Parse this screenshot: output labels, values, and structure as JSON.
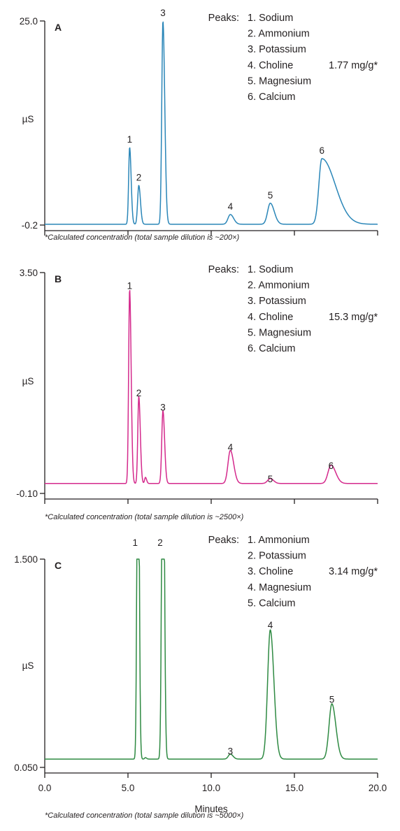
{
  "chart_data": [
    {
      "type": "line",
      "panel_label": "A",
      "ylabel": "µS",
      "y_tick_labels": [
        "-0.2",
        "25.0"
      ],
      "ylim": [
        -0.2,
        25.0
      ],
      "xlim": [
        0,
        20
      ],
      "x_tick_labels": [],
      "xlabel": "",
      "color": "#2a86b8",
      "peaks_heading": "Peaks:",
      "peaks": [
        "1. Sodium",
        "2. Ammonium",
        "3. Potassium",
        "4. Choline",
        "5. Magnesium",
        "6. Calcium"
      ],
      "highlight": "1.77 mg/g*",
      "highlight_row": 3,
      "peak_markers": [
        {
          "label": "1",
          "x": 5.1,
          "y": 9.3
        },
        {
          "label": "2",
          "x": 5.65,
          "y": 4.6
        },
        {
          "label": "3",
          "x": 7.1,
          "y": 24.9
        },
        {
          "label": "4",
          "x": 11.15,
          "y": 1.0
        },
        {
          "label": "5",
          "x": 13.55,
          "y": 2.4
        },
        {
          "label": "6",
          "x": 16.65,
          "y": 7.9
        }
      ],
      "trace_peaks": [
        {
          "x": 5.1,
          "h": 9.5,
          "wl": 0.06,
          "wr": 0.09
        },
        {
          "x": 5.65,
          "h": 4.8,
          "wl": 0.07,
          "wr": 0.1
        },
        {
          "x": 7.1,
          "h": 25.1,
          "wl": 0.07,
          "wr": 0.11
        },
        {
          "x": 11.15,
          "h": 1.2,
          "wl": 0.14,
          "wr": 0.2
        },
        {
          "x": 13.55,
          "h": 2.6,
          "wl": 0.16,
          "wr": 0.24
        },
        {
          "x": 16.65,
          "h": 8.1,
          "wl": 0.18,
          "wr": 0.8
        }
      ],
      "footnote": "*Calculated concentration (total sample dilution is ~200×)"
    },
    {
      "type": "line",
      "panel_label": "B",
      "ylabel": "µS",
      "y_tick_labels": [
        "-0.10",
        "3.50"
      ],
      "ylim": [
        -0.1,
        3.5
      ],
      "xlim": [
        0,
        20
      ],
      "x_tick_labels": [],
      "xlabel": "",
      "color": "#d4298c",
      "peaks_heading": "Peaks:",
      "peaks": [
        "1. Sodium",
        "2. Ammonium",
        "3. Potassium",
        "4. Choline",
        "5. Magnesium",
        "6. Calcium"
      ],
      "highlight": "15.3 mg/g*",
      "highlight_row": 3,
      "peak_markers": [
        {
          "label": "1",
          "x": 5.1,
          "y": 3.14
        },
        {
          "label": "2",
          "x": 5.65,
          "y": 1.39
        },
        {
          "label": "3",
          "x": 7.1,
          "y": 1.16
        },
        {
          "label": "4",
          "x": 11.15,
          "y": 0.51
        },
        {
          "label": "5",
          "x": 13.55,
          "y": -0.01
        },
        {
          "label": "6",
          "x": 17.2,
          "y": 0.21
        }
      ],
      "trace_peaks": [
        {
          "x": 5.1,
          "h": 3.17,
          "wl": 0.06,
          "wr": 0.09
        },
        {
          "x": 5.65,
          "h": 1.42,
          "wl": 0.06,
          "wr": 0.09
        },
        {
          "x": 6.05,
          "h": 0.1,
          "wl": 0.05,
          "wr": 0.07
        },
        {
          "x": 7.1,
          "h": 1.19,
          "wl": 0.07,
          "wr": 0.1
        },
        {
          "x": 11.15,
          "h": 0.54,
          "wl": 0.14,
          "wr": 0.2
        },
        {
          "x": 13.55,
          "h": 0.08,
          "wl": 0.16,
          "wr": 0.2
        },
        {
          "x": 17.2,
          "h": 0.3,
          "wl": 0.18,
          "wr": 0.28
        }
      ],
      "footnote": "*Calculated concentration (total sample dilution is ~2500×)"
    },
    {
      "type": "line",
      "panel_label": "C",
      "ylabel": "µS",
      "y_tick_labels": [
        "0.050",
        "1.500"
      ],
      "ylim": [
        0.05,
        1.5
      ],
      "xlim": [
        0,
        20
      ],
      "x_ticks": [
        0,
        5,
        10,
        15,
        20
      ],
      "x_tick_labels": [
        "0.0",
        "5.0",
        "10.0",
        "15.0",
        "20.0"
      ],
      "xlabel": "Minutes",
      "color": "#2e8a42",
      "peaks_heading": "Peaks:",
      "peaks": [
        "1. Ammonium",
        "2. Potassium",
        "3. Choline",
        "4. Magnesium",
        "5. Calcium"
      ],
      "highlight": "3.14 mg/g*",
      "highlight_row": 2,
      "peak_markers": [
        {
          "label": "1",
          "x": 5.6,
          "y": 1.5
        },
        {
          "label": "2",
          "x": 7.1,
          "y": 1.5
        },
        {
          "label": "3",
          "x": 11.15,
          "y": 0.1
        },
        {
          "label": "4",
          "x": 13.55,
          "y": 0.98
        },
        {
          "label": "5",
          "x": 17.25,
          "y": 0.46
        }
      ],
      "trace_peaks": [
        {
          "x": 5.6,
          "h": 3.0,
          "wl": 0.06,
          "wr": 0.07
        },
        {
          "x": 7.1,
          "h": 3.0,
          "wl": 0.07,
          "wr": 0.08
        },
        {
          "x": 6.05,
          "h": 0.01,
          "wl": 0.05,
          "wr": 0.07
        },
        {
          "x": 11.15,
          "h": 0.035,
          "wl": 0.12,
          "wr": 0.16
        },
        {
          "x": 13.55,
          "h": 0.9,
          "wl": 0.16,
          "wr": 0.22
        },
        {
          "x": 17.25,
          "h": 0.385,
          "wl": 0.17,
          "wr": 0.24
        }
      ],
      "clip_top": true,
      "footnote": "*Calculated concentration (total sample dilution is ~5000×)"
    }
  ]
}
